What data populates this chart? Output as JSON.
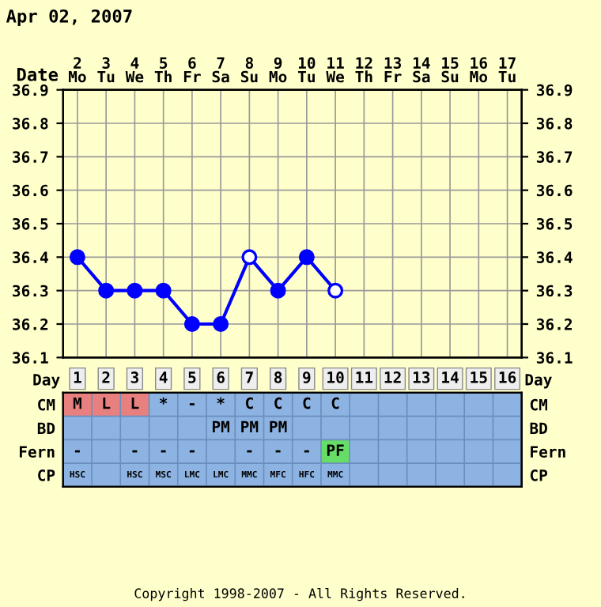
{
  "chart_data": [
    {
      "type": "line",
      "title": "Apr 02, 2007",
      "xlabel": "Date",
      "categories": [
        "2\nMo",
        "3\nTu",
        "4\nWe",
        "5\nTh",
        "6\nFr",
        "7\nSa",
        "8\nSu",
        "9\nMo",
        "10\nTu",
        "11\nWe",
        "12\nTh",
        "13\nFr",
        "14\nSa",
        "15\nSu",
        "16\nMo",
        "17\nTu"
      ],
      "series": [
        {
          "color": "#0000ff",
          "values": [
            36.4,
            36.3,
            36.3,
            36.3,
            36.2,
            36.2,
            36.4,
            36.3,
            36.4,
            36.3,
            null,
            null,
            null,
            null,
            null,
            null
          ],
          "colors": [
            "#0000ff",
            "#0000ff",
            "#0000ff",
            "#0000ff",
            "#0000ff",
            "#0000ff",
            "#ffffff",
            "#0000ff",
            "#0000ff",
            "#ffffff",
            null,
            null,
            null,
            null,
            null,
            null
          ]
        }
      ],
      "ylim": [
        36.1,
        36.9
      ],
      "yticks": [
        36.1,
        36.2,
        36.3,
        36.4,
        36.5,
        36.6,
        36.7,
        36.8,
        36.9
      ],
      "y2lim": [
        36.1,
        36.9
      ],
      "y2ticks": [
        36.1,
        36.2,
        36.3,
        36.4,
        36.5,
        36.6,
        36.7,
        36.8,
        36.9
      ],
      "grid": true,
      "marker": "circle",
      "line_style": "solid",
      "legend": false
    },
    {
      "type": "heatmap",
      "xlabel": "Day",
      "cells": [
        [
          null,
          null,
          null,
          null,
          null,
          null,
          null,
          null,
          null,
          null,
          null,
          null,
          null,
          null,
          null,
          null
        ],
        [
          null,
          null,
          null,
          null,
          null,
          null,
          null,
          null,
          null,
          null,
          null,
          null,
          null,
          null,
          null,
          null
        ],
        [
          null,
          null,
          null,
          null,
          null,
          null,
          null,
          null,
          null,
          null,
          null,
          null,
          null,
          null,
          null,
          null
        ],
        [
          null,
          null,
          null,
          null,
          null,
          null,
          null,
          null,
          null,
          null,
          null,
          null,
          null,
          null,
          null,
          null
        ]
      ],
      "categories": [
        "1",
        "2",
        "3",
        "4",
        "5",
        "6",
        "7",
        "8",
        "9",
        "10",
        "11",
        "12",
        "13",
        "14",
        "15",
        "16"
      ],
      "y_categories": [
        "CM",
        "BD",
        "Fern",
        "CP"
      ],
      "y2_categories": [
        "CM",
        "BD",
        "Fern",
        "CP"
      ],
      "cell_labels": [
        [
          "M",
          "L",
          "L",
          "*",
          "-",
          "*",
          "C",
          "C",
          "C",
          "C",
          null,
          null,
          null,
          null,
          null,
          null
        ],
        [
          null,
          null,
          null,
          null,
          null,
          "PM",
          "PM",
          "PM",
          null,
          null,
          null,
          null,
          null,
          null,
          null,
          null
        ],
        [
          "-",
          null,
          "-",
          "-",
          "-",
          null,
          "-",
          "-",
          "-",
          "PF",
          null,
          null,
          null,
          null,
          null,
          null
        ],
        [
          "HSC",
          null,
          "HSC",
          "MSC",
          "LMC",
          "LMC",
          "MMC",
          "MFC",
          "HFC",
          "MMC",
          null,
          null,
          null,
          null,
          null,
          null
        ]
      ],
      "color": "#8db3e2",
      "colors": [
        [
          "#e88080",
          "#e88080",
          "#e88080",
          null,
          null,
          null,
          null,
          null,
          null,
          null,
          null,
          null,
          null,
          null,
          null,
          null
        ],
        [
          null,
          null,
          null,
          null,
          null,
          null,
          null,
          null,
          null,
          null,
          null,
          null,
          null,
          null,
          null,
          null
        ],
        [
          null,
          null,
          null,
          null,
          null,
          null,
          null,
          null,
          null,
          "#66dd66",
          null,
          null,
          null,
          null,
          null,
          null
        ],
        [
          null,
          null,
          null,
          null,
          null,
          null,
          null,
          null,
          null,
          null,
          null,
          null,
          null,
          null,
          null,
          null
        ]
      ],
      "annotations": [
        "Copyright 1998-2007 - All Rights Reserved."
      ]
    }
  ]
}
